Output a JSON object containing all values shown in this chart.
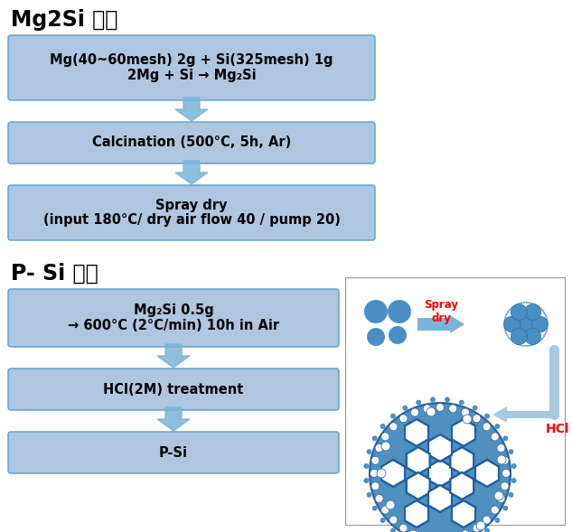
{
  "title1": "Mg2Si 제조",
  "title2": "P- Si 제조",
  "box_color": "#aec6e0",
  "box_edge_color": "#5a9fc8",
  "arrow_color": "#7ab4d8",
  "bg_color": "#ffffff",
  "box1_line1": "Mg(40~60mesh) 2g + Si(325mesh) 1g",
  "box1_line2": "2Mg + Si → Mg₂Si",
  "box2_text": "Calcination (500°C, 5h, Ar)",
  "box3_line1": "Spray dry",
  "box3_line2": "(input 180°C/ dry air flow 40 / pump 20)",
  "box4_line1": "Mg₂Si 0.5g",
  "box4_line2": "→ 600°C (2°C/min) 10h in Air",
  "box5_text": "HCl(2M) treatment",
  "box6_text": "P-Si",
  "circle_color": "#4a8fc4",
  "spray_dry_label": "Spray\ndry",
  "hcl_label": "HCl",
  "diag_box_color": "#c8dff0"
}
